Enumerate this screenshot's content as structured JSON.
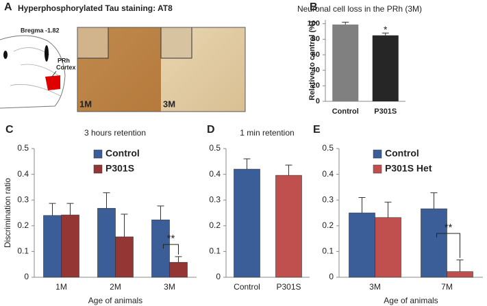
{
  "panel_a": {
    "label": "A",
    "title": "Hyperphosphorylated Tau staining: AT8",
    "bregma": "Bregma -1.82",
    "region": [
      "PRh",
      "Cortex"
    ],
    "images": [
      "1M",
      "3M"
    ]
  },
  "chart_data": [
    {
      "type": "bar",
      "label": "B",
      "title": "Neuronal cell loss in the PRh (3M)",
      "ylabel": "Relative to control (%)",
      "categories": [
        "Control",
        "P301S"
      ],
      "values": [
        99,
        85
      ],
      "errors": [
        3,
        3
      ],
      "colors": [
        "#808080",
        "#262626"
      ],
      "ylim": [
        0,
        105
      ],
      "yticks": [
        0,
        20,
        40,
        60,
        80,
        100
      ],
      "annotations": [
        {
          "text": "*",
          "category": "P301S"
        }
      ]
    },
    {
      "type": "bar",
      "label": "C",
      "title": "3 hours retention",
      "ylabel": "Discrimination ratio",
      "xlabel": "Age of animals",
      "categories": [
        "1M",
        "2M",
        "3M"
      ],
      "series": [
        {
          "name": "Control",
          "color": "#3b5e98",
          "values": [
            0.24,
            0.268,
            0.223
          ],
          "errors": [
            0.047,
            0.06,
            0.054
          ]
        },
        {
          "name": "P301S",
          "color": "#943634",
          "values": [
            0.242,
            0.157,
            0.058
          ],
          "errors": [
            0.045,
            0.088,
            0.022
          ]
        }
      ],
      "ylim": [
        0,
        0.5
      ],
      "yticks": [
        0,
        0.1,
        0.2,
        0.3,
        0.4,
        0.5
      ],
      "legend": "upper right",
      "significance": [
        {
          "text": "**",
          "category": "3M"
        }
      ]
    },
    {
      "type": "bar",
      "label": "D",
      "title": "1 min retention",
      "categories": [
        "Control",
        "P301S"
      ],
      "values": [
        0.42,
        0.396
      ],
      "errors": [
        0.04,
        0.04
      ],
      "colors": [
        "#3b5e98",
        "#c0504d"
      ],
      "ylim": [
        0,
        0.5
      ],
      "yticks": [
        0,
        0.1,
        0.2,
        0.3,
        0.4,
        0.5
      ]
    },
    {
      "type": "bar",
      "label": "E",
      "xlabel": "Age of animals",
      "categories": [
        "3M",
        "7M"
      ],
      "series": [
        {
          "name": "Control",
          "color": "#3b5e98",
          "values": [
            0.25,
            0.266
          ],
          "errors": [
            0.06,
            0.062
          ]
        },
        {
          "name": "P301S Het",
          "color": "#c0504d",
          "values": [
            0.232,
            0.022
          ],
          "errors": [
            0.06,
            0.045
          ]
        }
      ],
      "ylim": [
        0,
        0.5
      ],
      "yticks": [
        0,
        0.1,
        0.2,
        0.3,
        0.4,
        0.5
      ],
      "legend": "upper left",
      "significance": [
        {
          "text": "**",
          "category": "7M"
        }
      ]
    }
  ]
}
